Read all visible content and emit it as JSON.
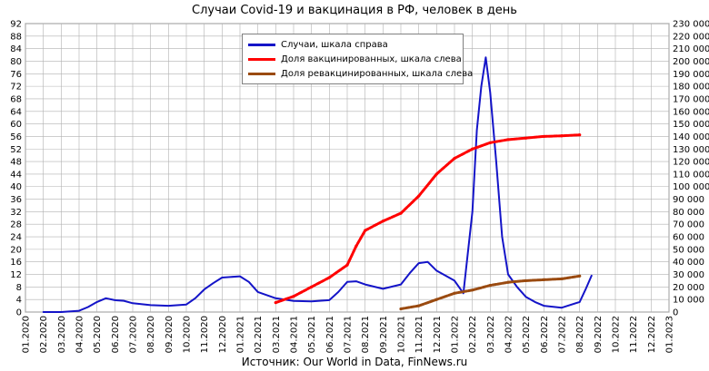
{
  "chart": {
    "title": "Случаи Covid-19 и вакцинация в РФ, человек в день",
    "source": "Источник: Our World in Data, FinNews.ru",
    "legend": [
      {
        "label": "Случаи, шкала справа",
        "color": "#1414c8"
      },
      {
        "label": "Доля вакцинированных,  шкала слева",
        "color": "#ff0000"
      },
      {
        "label": "Доля ревакцинированных,  шкала слева",
        "color": "#9a4a10"
      }
    ]
  },
  "chart_data": {
    "type": "line",
    "title": "Случаи Covid-19 и вакцинация в РФ, человек в день",
    "x_tick_labels": [
      "01.2020",
      "02.2020",
      "03.2020",
      "04.2020",
      "05.2020",
      "06.2020",
      "07.2020",
      "08.2020",
      "09.2020",
      "10.2020",
      "11.2020",
      "12.2020",
      "01.2021",
      "02.2021",
      "03.2021",
      "04.2021",
      "05.2021",
      "06.2021",
      "07.2021",
      "08.2021",
      "09.2021",
      "10.2021",
      "11.2021",
      "12.2021",
      "01.2022",
      "02.2022",
      "03.2022",
      "04.2022",
      "05.2022",
      "06.2022",
      "07.2022",
      "08.2022",
      "09.2022",
      "10.2022",
      "11.2022",
      "12.2022",
      "01.2023"
    ],
    "y_left": {
      "min": 0,
      "max": 92,
      "step": 4,
      "tick_labels": [
        "0",
        "4",
        "8",
        "12",
        "16",
        "20",
        "24",
        "28",
        "32",
        "36",
        "40",
        "44",
        "48",
        "52",
        "56",
        "60",
        "64",
        "68",
        "72",
        "76",
        "80",
        "84",
        "88",
        "92"
      ]
    },
    "y_right": {
      "min": 0,
      "max": 230000,
      "step": 10000,
      "tick_labels": [
        "0",
        "10 000",
        "20 000",
        "30 000",
        "40 000",
        "50 000",
        "60 000",
        "70 000",
        "80 000",
        "90 000",
        "100 000",
        "110 000",
        "120 000",
        "130 000",
        "140 000",
        "150 000",
        "160 000",
        "170 000",
        "180 000",
        "190 000",
        "200 000",
        "210 000",
        "220 000",
        "230 000"
      ]
    },
    "grid": true,
    "legend_position": "top-center",
    "series": [
      {
        "name": "Случаи, шкала справа",
        "axis": "right",
        "color": "#1414c8",
        "points": [
          [
            "02.2020",
            0
          ],
          [
            "03.2020",
            0
          ],
          [
            "04.2020",
            1000
          ],
          [
            "04.2020",
            4000
          ],
          [
            "05.2020",
            8000
          ],
          [
            "05.2020",
            11000
          ],
          [
            "06.2020",
            9500
          ],
          [
            "06.2020",
            9000
          ],
          [
            "07.2020",
            7000
          ],
          [
            "08.2020",
            5500
          ],
          [
            "09.2020",
            5000
          ],
          [
            "10.2020",
            6000
          ],
          [
            "10.2020",
            11000
          ],
          [
            "11.2020",
            18000
          ],
          [
            "11.2020",
            23000
          ],
          [
            "12.2020",
            27500
          ],
          [
            "01.2021",
            28500
          ],
          [
            "01.2021",
            24000
          ],
          [
            "02.2021",
            16000
          ],
          [
            "03.2021",
            11000
          ],
          [
            "04.2021",
            8800
          ],
          [
            "05.2021",
            8500
          ],
          [
            "06.2021",
            9500
          ],
          [
            "06.2021",
            16000
          ],
          [
            "07.2021",
            24000
          ],
          [
            "07.2021",
            24500
          ],
          [
            "08.2021",
            22000
          ],
          [
            "09.2021",
            18500
          ],
          [
            "10.2021",
            22000
          ],
          [
            "10.2021",
            31000
          ],
          [
            "11.2021",
            39000
          ],
          [
            "11.2021",
            40000
          ],
          [
            "12.2021",
            33000
          ],
          [
            "12.2021",
            29000
          ],
          [
            "01.2022",
            25000
          ],
          [
            "01.2022",
            15000
          ],
          [
            "02.2022",
            80000
          ],
          [
            "02.2022",
            145000
          ],
          [
            "02.2022",
            180000
          ],
          [
            "02.2022",
            203000
          ],
          [
            "03.2022",
            175000
          ],
          [
            "03.2022",
            120000
          ],
          [
            "03.2022",
            60000
          ],
          [
            "04.2022",
            30000
          ],
          [
            "04.2022",
            20000
          ],
          [
            "05.2022",
            12000
          ],
          [
            "05.2022",
            8000
          ],
          [
            "06.2022",
            5000
          ],
          [
            "07.2022",
            3500
          ],
          [
            "08.2022",
            8000
          ],
          [
            "08.2022",
            18000
          ],
          [
            "08.2022",
            29000
          ]
        ]
      },
      {
        "name": "Доля вакцинированных,  шкала слева",
        "axis": "left",
        "color": "#ff0000",
        "points": [
          [
            "03.2021",
            3
          ],
          [
            "04.2021",
            5
          ],
          [
            "05.2021",
            8
          ],
          [
            "06.2021",
            11
          ],
          [
            "07.2021",
            15
          ],
          [
            "07.2021",
            21
          ],
          [
            "08.2021",
            26
          ],
          [
            "09.2021",
            29
          ],
          [
            "10.2021",
            31.5
          ],
          [
            "11.2021",
            37
          ],
          [
            "12.2021",
            44
          ],
          [
            "01.2022",
            49
          ],
          [
            "02.2022",
            52
          ],
          [
            "03.2022",
            54
          ],
          [
            "04.2022",
            55
          ],
          [
            "05.2022",
            55.5
          ],
          [
            "06.2022",
            56
          ],
          [
            "07.2022",
            56.2
          ],
          [
            "08.2022",
            56.5
          ]
        ]
      },
      {
        "name": "Доля ревакцинированных,  шкала слева",
        "axis": "left",
        "color": "#9a4a10",
        "points": [
          [
            "10.2021",
            1
          ],
          [
            "11.2021",
            2
          ],
          [
            "12.2021",
            4
          ],
          [
            "01.2022",
            6
          ],
          [
            "02.2022",
            7
          ],
          [
            "03.2022",
            8.5
          ],
          [
            "04.2022",
            9.5
          ],
          [
            "05.2022",
            10
          ],
          [
            "06.2022",
            10.3
          ],
          [
            "07.2022",
            10.6
          ],
          [
            "08.2022",
            11.5
          ]
        ]
      }
    ]
  }
}
